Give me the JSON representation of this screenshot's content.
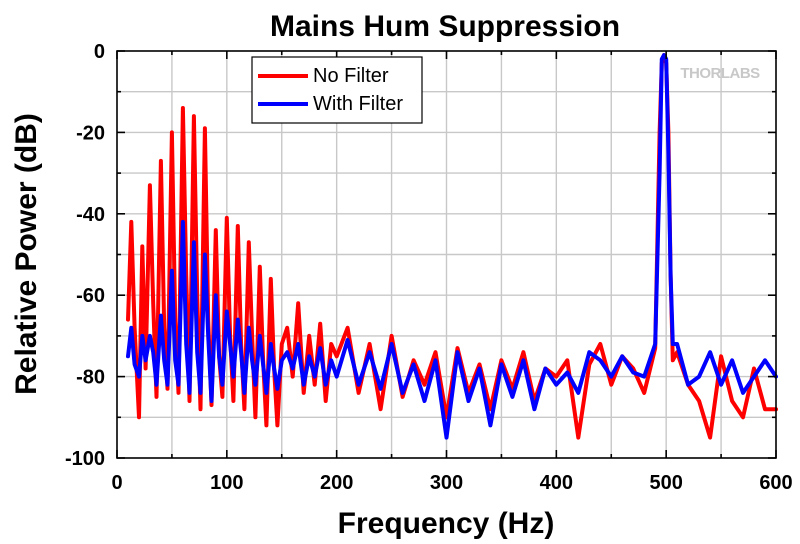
{
  "chart_data": {
    "type": "line",
    "title": "Mains Hum Suppression",
    "xlabel": "Frequency (Hz)",
    "ylabel": "Relative Power (dB)",
    "xlim": [
      0,
      600
    ],
    "ylim": [
      -100,
      0
    ],
    "xticks": [
      0,
      100,
      200,
      300,
      400,
      500,
      600
    ],
    "yticks": [
      0,
      -20,
      -40,
      -60,
      -80,
      -100
    ],
    "grid": true,
    "legend_position": "top-center",
    "watermark": "THORLABS",
    "series": [
      {
        "name": "No Filter",
        "color": "#ff0000",
        "x": [
          10,
          13,
          16,
          20,
          23,
          26,
          30,
          33,
          36,
          40,
          43,
          46,
          50,
          53,
          56,
          60,
          63,
          66,
          70,
          73,
          76,
          80,
          83,
          86,
          90,
          93,
          96,
          100,
          103,
          106,
          110,
          113,
          116,
          120,
          123,
          126,
          130,
          133,
          136,
          140,
          143,
          146,
          150,
          155,
          160,
          165,
          170,
          175,
          180,
          185,
          190,
          195,
          200,
          210,
          220,
          230,
          240,
          250,
          260,
          270,
          280,
          290,
          300,
          310,
          320,
          330,
          340,
          350,
          360,
          370,
          380,
          390,
          400,
          410,
          420,
          430,
          440,
          450,
          460,
          470,
          480,
          490,
          494,
          496,
          498,
          500,
          502,
          504,
          506,
          510,
          520,
          530,
          540,
          550,
          560,
          570,
          580,
          590,
          600
        ],
        "y": [
          -66,
          -42,
          -68,
          -90,
          -48,
          -78,
          -33,
          -62,
          -85,
          -27,
          -68,
          -83,
          -20,
          -66,
          -84,
          -14,
          -55,
          -86,
          -16,
          -60,
          -88,
          -19,
          -66,
          -87,
          -44,
          -75,
          -85,
          -41,
          -70,
          -86,
          -43,
          -72,
          -88,
          -47,
          -70,
          -90,
          -53,
          -76,
          -92,
          -56,
          -78,
          -92,
          -72,
          -68,
          -80,
          -62,
          -84,
          -70,
          -82,
          -67,
          -86,
          -72,
          -75,
          -68,
          -84,
          -72,
          -88,
          -70,
          -85,
          -76,
          -82,
          -74,
          -90,
          -73,
          -84,
          -77,
          -88,
          -76,
          -83,
          -74,
          -86,
          -78,
          -80,
          -76,
          -95,
          -77,
          -72,
          -82,
          -75,
          -78,
          -84,
          -73,
          -20,
          -3,
          -1,
          -3,
          -20,
          -55,
          -76,
          -74,
          -82,
          -86,
          -95,
          -75,
          -86,
          -90,
          -78,
          -88,
          -88
        ]
      },
      {
        "name": "With Filter",
        "color": "#0000ff",
        "x": [
          10,
          13,
          16,
          20,
          23,
          26,
          30,
          33,
          36,
          40,
          43,
          46,
          50,
          53,
          56,
          60,
          63,
          66,
          70,
          73,
          76,
          80,
          83,
          86,
          90,
          93,
          96,
          100,
          103,
          106,
          110,
          113,
          116,
          120,
          123,
          126,
          130,
          133,
          136,
          140,
          143,
          146,
          150,
          155,
          160,
          165,
          170,
          175,
          180,
          185,
          190,
          195,
          200,
          210,
          220,
          230,
          240,
          250,
          260,
          270,
          280,
          290,
          300,
          310,
          320,
          330,
          340,
          350,
          360,
          370,
          380,
          390,
          400,
          410,
          420,
          430,
          440,
          450,
          460,
          470,
          480,
          490,
          494,
          496,
          498,
          500,
          502,
          504,
          506,
          510,
          520,
          530,
          540,
          550,
          560,
          570,
          580,
          590,
          600
        ],
        "y": [
          -75,
          -68,
          -77,
          -80,
          -70,
          -76,
          -70,
          -74,
          -82,
          -65,
          -76,
          -82,
          -54,
          -76,
          -82,
          -42,
          -72,
          -84,
          -47,
          -74,
          -84,
          -50,
          -70,
          -86,
          -60,
          -75,
          -82,
          -64,
          -72,
          -80,
          -66,
          -74,
          -84,
          -68,
          -76,
          -82,
          -70,
          -77,
          -84,
          -72,
          -78,
          -83,
          -76,
          -74,
          -78,
          -72,
          -82,
          -75,
          -80,
          -73,
          -82,
          -76,
          -80,
          -71,
          -82,
          -74,
          -83,
          -72,
          -84,
          -77,
          -86,
          -76,
          -95,
          -74,
          -86,
          -78,
          -92,
          -77,
          -85,
          -76,
          -88,
          -78,
          -82,
          -79,
          -84,
          -74,
          -76,
          -80,
          -75,
          -79,
          -80,
          -72,
          -30,
          -2,
          -1,
          -2,
          -25,
          -55,
          -72,
          -72,
          -82,
          -80,
          -74,
          -82,
          -76,
          -84,
          -80,
          -76,
          -80
        ]
      }
    ]
  }
}
